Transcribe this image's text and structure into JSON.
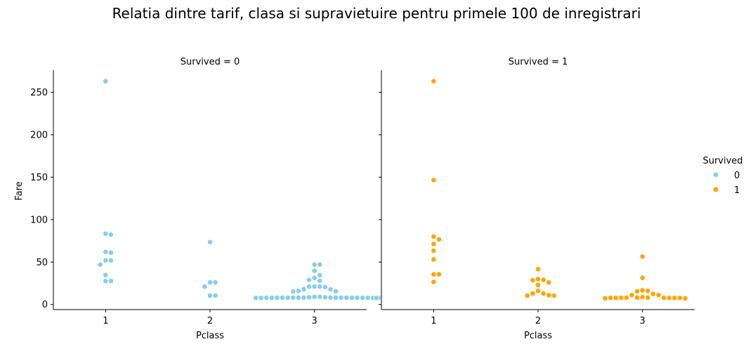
{
  "chart_data": {
    "type": "scatter",
    "style": "swarm",
    "title": "Relatia dintre tarif, clasa si supravietuire pentru primele 100 de inregistrari",
    "xlabel": "Pclass",
    "ylabel": "Fare",
    "categories": [
      "1",
      "2",
      "3"
    ],
    "ylim": [
      -6,
      276
    ],
    "yticks": [
      0,
      50,
      100,
      150,
      200,
      250
    ],
    "legend": {
      "title": "Survived",
      "placement": "center-right",
      "entries": [
        {
          "label": "0",
          "color": "#87ceeb"
        },
        {
          "label": "1",
          "color": "#ffa500"
        }
      ]
    },
    "panels": [
      {
        "title": "Survived = 0",
        "color": "#87ceeb",
        "groups": [
          {
            "category": "1",
            "values": [
              263,
              83.5,
              82.2,
              62,
              61.2,
              52,
              52,
              47,
              34.7,
              27.7,
              27.7
            ]
          },
          {
            "category": "2",
            "values": [
              73.5,
              26,
              26,
              21,
              10.5,
              10.5
            ]
          },
          {
            "category": "3",
            "values": [
              47,
              47,
              39.7,
              34.4,
              31.3,
              29,
              27.9,
              21.1,
              21,
              21,
              20.5,
              18,
              17.8,
              16.1,
              15.5,
              15.2,
              9,
              8.5,
              8.1,
              8.05,
              8.05,
              8.05,
              7.9,
              7.9,
              7.9,
              7.9,
              7.9,
              7.8,
              7.75,
              7.75,
              7.75,
              7.75,
              7.75,
              7.75,
              7.75,
              7.75,
              7.75,
              7.8,
              7.9,
              8,
              8,
              8,
              8.1,
              8.5,
              9
            ]
          }
        ]
      },
      {
        "title": "Survived = 1",
        "color": "#ffa500",
        "groups": [
          {
            "category": "1",
            "values": [
              263,
              146.5,
              80,
              76.7,
              71.3,
              63.4,
              53.1,
              35.5,
              35.5,
              26.5
            ]
          },
          {
            "category": "2",
            "values": [
              41.6,
              30,
              29,
              28.5,
              26,
              23,
              16,
              13,
              13,
              11,
              10.5,
              10.5
            ]
          },
          {
            "category": "3",
            "values": [
              56.5,
              31.4,
              16,
              15.5,
              16.7,
              12.5,
              11.1,
              11.1,
              8.7,
              8,
              7.9,
              7.9,
              7.75,
              7.75,
              7.7,
              7.3,
              7.2,
              7.75,
              7.8,
              8.05,
              8.05
            ]
          }
        ]
      }
    ]
  }
}
